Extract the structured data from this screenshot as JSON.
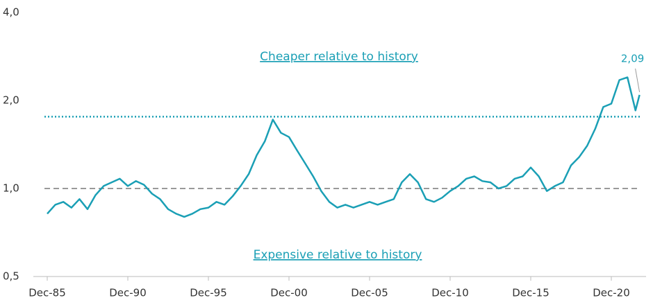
{
  "chart_data": {
    "type": "line",
    "log_scale": true,
    "color": "#1a9fb5",
    "x": [
      "Dec-85",
      "Jun-86",
      "Dec-86",
      "Jun-87",
      "Dec-87",
      "Jun-88",
      "Dec-88",
      "Jun-89",
      "Dec-89",
      "Jun-90",
      "Dec-90",
      "Jun-91",
      "Dec-91",
      "Jun-92",
      "Dec-92",
      "Jun-93",
      "Dec-93",
      "Jun-94",
      "Dec-94",
      "Jun-95",
      "Dec-95",
      "Jun-96",
      "Dec-96",
      "Jun-97",
      "Dec-97",
      "Jun-98",
      "Dec-98",
      "Jun-99",
      "Dec-99",
      "Jun-00",
      "Dec-00",
      "Jun-01",
      "Dec-01",
      "Jun-02",
      "Dec-02",
      "Jun-03",
      "Dec-03",
      "Jun-04",
      "Dec-04",
      "Jun-05",
      "Dec-05",
      "Jun-06",
      "Dec-06",
      "Jun-07",
      "Dec-07",
      "Jun-08",
      "Dec-08",
      "Jun-09",
      "Dec-09",
      "Jun-10",
      "Dec-10",
      "Jun-11",
      "Dec-11",
      "Jun-12",
      "Dec-12",
      "Jun-13",
      "Dec-13",
      "Jun-14",
      "Dec-14",
      "Jun-15",
      "Dec-15",
      "Jun-16",
      "Dec-16",
      "Jun-17",
      "Dec-17",
      "Jun-18",
      "Dec-18",
      "Jun-19",
      "Dec-19",
      "Jun-20",
      "Dec-20",
      "Jun-21",
      "Dec-21",
      "Jun-22",
      "Sep-22"
    ],
    "values": [
      0.82,
      0.88,
      0.9,
      0.86,
      0.92,
      0.85,
      0.95,
      1.02,
      1.05,
      1.08,
      1.02,
      1.06,
      1.03,
      0.96,
      0.92,
      0.85,
      0.82,
      0.8,
      0.82,
      0.85,
      0.86,
      0.9,
      0.88,
      0.94,
      1.02,
      1.12,
      1.3,
      1.45,
      1.72,
      1.55,
      1.5,
      1.35,
      1.22,
      1.1,
      0.98,
      0.9,
      0.86,
      0.88,
      0.86,
      0.88,
      0.9,
      0.88,
      0.9,
      0.92,
      1.05,
      1.12,
      1.05,
      0.92,
      0.9,
      0.93,
      0.98,
      1.02,
      1.08,
      1.1,
      1.06,
      1.05,
      1.0,
      1.02,
      1.08,
      1.1,
      1.18,
      1.1,
      0.98,
      1.02,
      1.05,
      1.2,
      1.28,
      1.4,
      1.6,
      1.9,
      1.95,
      2.35,
      2.4,
      1.85,
      2.09
    ],
    "xticks": [
      "Dec-85",
      "Dec-90",
      "Dec-95",
      "Dec-00",
      "Dec-05",
      "Dec-10",
      "Dec-15",
      "Dec-20"
    ],
    "ylim": [
      0.5,
      4.0
    ],
    "yticks": [
      {
        "value": 0.5,
        "label": "0,5"
      },
      {
        "value": 1.0,
        "label": "1,0"
      },
      {
        "value": 2.0,
        "label": "2,0"
      },
      {
        "value": 4.0,
        "label": "4,0"
      }
    ],
    "reference_lines": [
      {
        "value": 1.76,
        "style": "dotted",
        "color": "#1a9fb5"
      },
      {
        "value": 1.0,
        "style": "dashed",
        "color": "#999999"
      }
    ],
    "annotations": [
      "Cheaper relative to history",
      "Expensive relative to history"
    ],
    "end_label": {
      "value": 2.09,
      "label": "2,09"
    }
  }
}
